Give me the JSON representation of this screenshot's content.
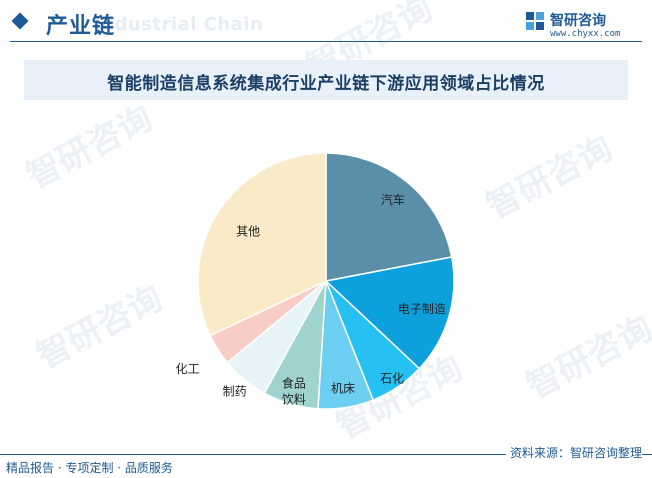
{
  "header": {
    "title": "产业链",
    "ghost_text": "Industrial Chain"
  },
  "logo": {
    "name": "智研咨询",
    "url": "www.chyxx.com"
  },
  "watermark": "智研咨询",
  "chart_data": {
    "type": "pie",
    "title": "智能制造信息系统集成行业产业链下游应用领域占比情况",
    "slices": [
      {
        "label": "汽车",
        "value": 22,
        "color": "#5b8fa8"
      },
      {
        "label": "电子制造",
        "value": 15,
        "color": "#0ea0dd"
      },
      {
        "label": "石化",
        "value": 7,
        "color": "#26c0f2"
      },
      {
        "label": "机床",
        "value": 7,
        "color": "#6ccef0"
      },
      {
        "label": "食品\n饮料",
        "value": 7,
        "color": "#9ed3d0"
      },
      {
        "label": "制药",
        "value": 6,
        "color": "#e6f3f7"
      },
      {
        "label": "化工",
        "value": 4,
        "color": "#f7cdc6"
      },
      {
        "label": "其他",
        "value": 32,
        "color": "#faebc8"
      }
    ],
    "start_angle_deg": 0,
    "direction": "clockwise"
  },
  "footer": {
    "source": "资料来源：智研咨询整理",
    "slogan": "精品报告 · 专项定制 · 品质服务"
  },
  "colors": {
    "brand": "#1e5a96",
    "title_bar": "#e8f1f9"
  }
}
